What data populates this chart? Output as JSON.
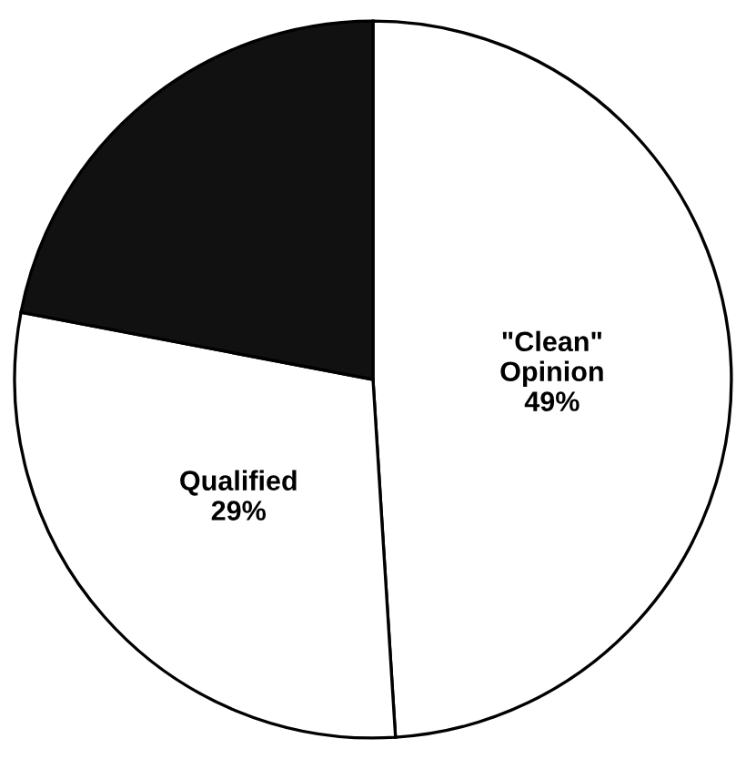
{
  "chart_data": {
    "type": "pie",
    "categories": [
      "\"Clean\"\nOpinion",
      "Qualified",
      null
    ],
    "values": [
      49,
      29,
      22
    ],
    "value_labels": [
      "49%",
      "29%",
      null
    ],
    "colors": [
      "#ffffff",
      "#ffffff",
      "#111111"
    ]
  }
}
